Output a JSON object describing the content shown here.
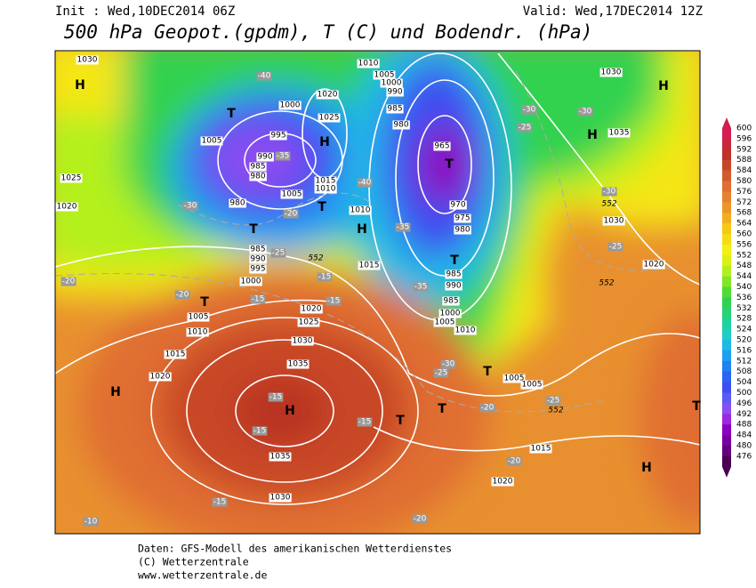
{
  "header": {
    "init": "Init : Wed,10DEC2014 06Z",
    "valid": "Valid: Wed,17DEC2014 12Z",
    "title": "500 hPa Geopot.(gpdm), T (C) und Bodendr. (hPa)"
  },
  "footer": {
    "line1": "Daten: GFS-Modell des amerikanischen Wetterdienstes",
    "line2": "(C) Wetterzentrale",
    "line3": "www.wetterzentrale.de"
  },
  "colorbar": {
    "levels": [
      600,
      596,
      592,
      588,
      584,
      580,
      576,
      572,
      568,
      564,
      560,
      556,
      552,
      548,
      544,
      540,
      536,
      532,
      528,
      524,
      520,
      516,
      512,
      508,
      504,
      500,
      496,
      492,
      488,
      484,
      480,
      476
    ],
    "colors": [
      "#d21e50",
      "#c8283c",
      "#be3228",
      "#c84628",
      "#d25a2d",
      "#e06e32",
      "#e68232",
      "#eb9628",
      "#f0b01e",
      "#f5c814",
      "#f5dc14",
      "#f5f014",
      "#dcf014",
      "#b4f01e",
      "#82e628",
      "#50dc32",
      "#32d250",
      "#28d278",
      "#20d2a0",
      "#1ecdc8",
      "#1eb9e6",
      "#1ea0f0",
      "#1e82f0",
      "#2a64f0",
      "#3c50f0",
      "#5a5af5",
      "#8a4ef0",
      "#9a28dc",
      "#8c00c0",
      "#7800a0",
      "#640080",
      "#4b0050"
    ]
  },
  "pressure_labels": [
    "1030",
    "H",
    "1025",
    "1020",
    "1005",
    "995",
    "990",
    "985",
    "980",
    "1000",
    "1020",
    "1025",
    "H",
    "1015",
    "1010",
    "T",
    "1005",
    "980",
    "T",
    "985",
    "990",
    "995",
    "1000",
    "1010",
    "1005",
    "1000",
    "990",
    "985",
    "980",
    "965",
    "T",
    "970",
    "975",
    "980",
    "T",
    "985",
    "990",
    "985",
    "1000",
    "1005",
    "1010",
    "T",
    "1005",
    "1005",
    "H",
    "1035",
    "1030",
    "1030",
    "H",
    "1020",
    "1015",
    "1010",
    "H",
    "1020",
    "1025",
    "1030",
    "1035",
    "H",
    "1035",
    "1030",
    "1015",
    "1020",
    "H",
    "1010",
    "1005",
    "T",
    "T",
    "T",
    "1015",
    "1020",
    "H",
    "T",
    "T"
  ],
  "temperature_labels": [
    "-40",
    "-35",
    "-40",
    "-35",
    "-30",
    "-25",
    "-20",
    "-20",
    "-15",
    "-15",
    "-15",
    "-20",
    "-15",
    "-15",
    "-15",
    "-15",
    "-10",
    "-20",
    "-20",
    "-20",
    "-25",
    "-30",
    "-25",
    "-35",
    "-30",
    "-30",
    "-25",
    "-30",
    "-25"
  ],
  "geopotential_labels": [
    "552",
    "552",
    "552",
    "552"
  ]
}
